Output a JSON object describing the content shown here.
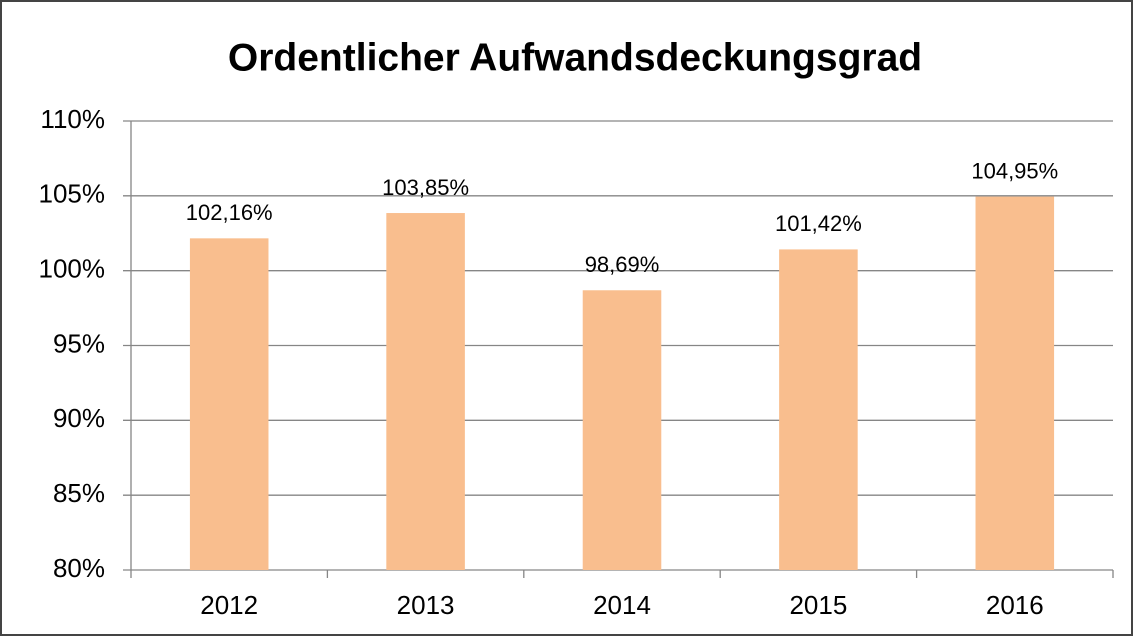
{
  "chart_data": {
    "type": "bar",
    "title": "Ordentlicher Aufwandsdeckungsgrad",
    "categories": [
      "2012",
      "2013",
      "2014",
      "2015",
      "2016"
    ],
    "values": [
      102.16,
      103.85,
      98.69,
      101.42,
      104.95
    ],
    "value_labels": [
      "102,16%",
      "103,85%",
      "98,69%",
      "101,42%",
      "104,95%"
    ],
    "color": "#f9be8e",
    "ylim": [
      80,
      110
    ],
    "yticks": [
      {
        "value": 80,
        "label": "80%"
      },
      {
        "value": 85,
        "label": "85%"
      },
      {
        "value": 90,
        "label": "90%"
      },
      {
        "value": 95,
        "label": "95%"
      },
      {
        "value": 100,
        "label": "100%"
      },
      {
        "value": 105,
        "label": "105%"
      },
      {
        "value": 110,
        "label": "110%"
      }
    ],
    "grid": true
  }
}
